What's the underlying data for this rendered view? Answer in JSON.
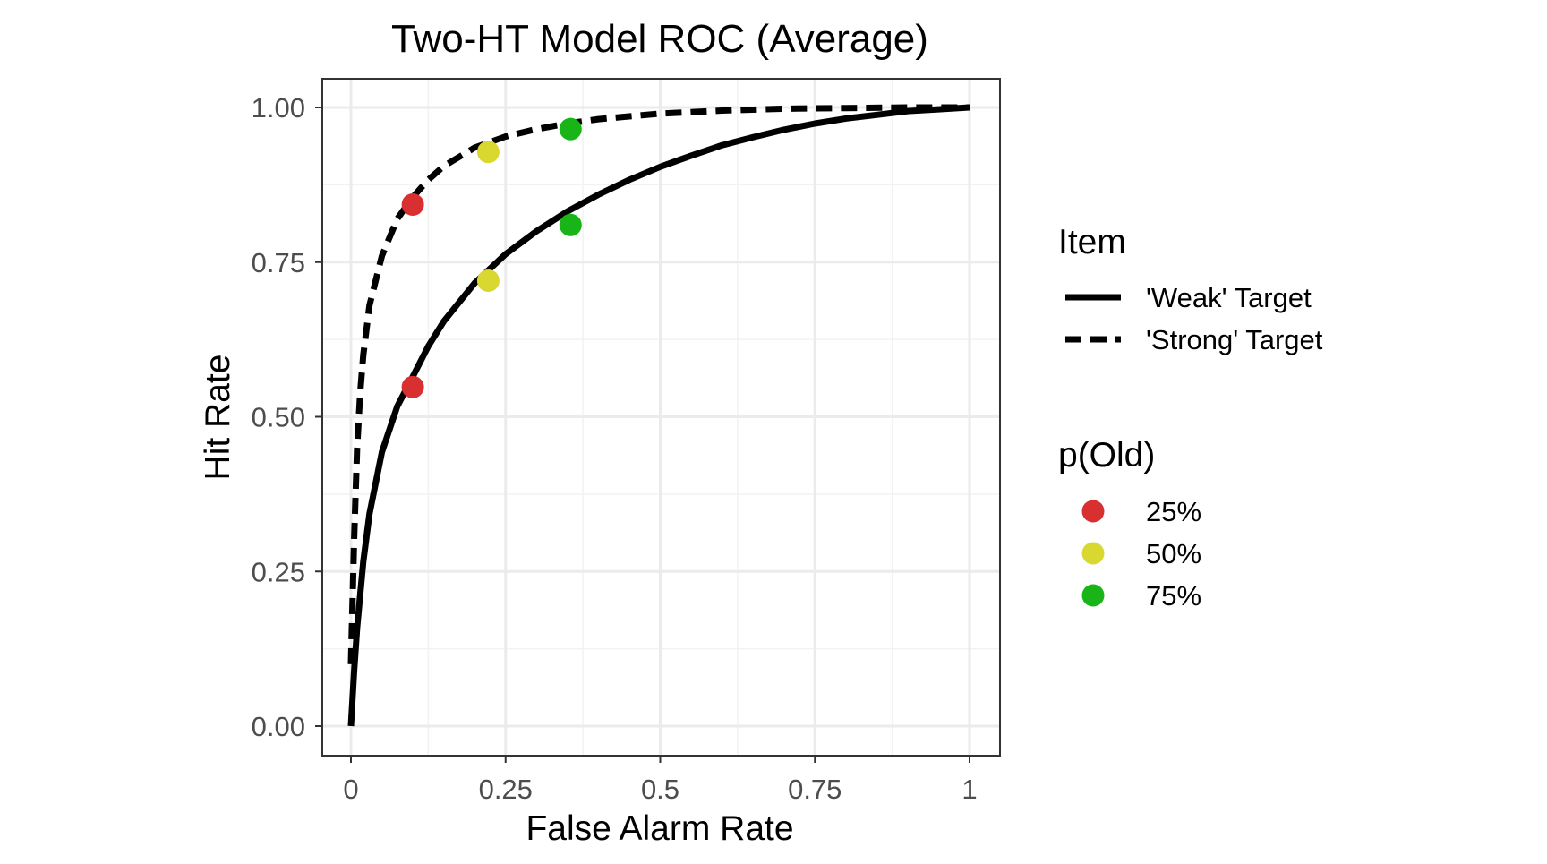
{
  "chart_data": {
    "type": "line",
    "title": "Two-HT Model ROC (Average)",
    "xlabel": "False Alarm Rate",
    "ylabel": "Hit Rate",
    "xlim": [
      0,
      1
    ],
    "ylim": [
      0,
      1
    ],
    "x_ticks": [
      {
        "value": 0,
        "label": "0"
      },
      {
        "value": 0.25,
        "label": "0.25"
      },
      {
        "value": 0.5,
        "label": "0.5"
      },
      {
        "value": 0.75,
        "label": "0.75"
      },
      {
        "value": 1,
        "label": "1"
      }
    ],
    "y_ticks": [
      {
        "value": 0,
        "label": "0.00"
      },
      {
        "value": 0.25,
        "label": "0.25"
      },
      {
        "value": 0.5,
        "label": "0.50"
      },
      {
        "value": 0.75,
        "label": "0.75"
      },
      {
        "value": 1,
        "label": "1.00"
      }
    ],
    "grid": true,
    "series": [
      {
        "name": "'Weak' Target",
        "style": "solid",
        "color": "#000000",
        "x": [
          0,
          0.005,
          0.01,
          0.02,
          0.03,
          0.05,
          0.075,
          0.1,
          0.125,
          0.15,
          0.2,
          0.25,
          0.3,
          0.35,
          0.4,
          0.45,
          0.5,
          0.55,
          0.6,
          0.65,
          0.7,
          0.75,
          0.8,
          0.85,
          0.9,
          0.95,
          1
        ],
        "y": [
          0,
          0.088,
          0.159,
          0.266,
          0.343,
          0.443,
          0.517,
          0.565,
          0.614,
          0.654,
          0.716,
          0.763,
          0.8,
          0.832,
          0.859,
          0.883,
          0.904,
          0.922,
          0.939,
          0.952,
          0.964,
          0.974,
          0.982,
          0.988,
          0.994,
          0.997,
          1
        ]
      },
      {
        "name": "'Strong' Target",
        "style": "dashed",
        "color": "#000000",
        "x": [
          0,
          0.005,
          0.01,
          0.015,
          0.02,
          0.03,
          0.05,
          0.075,
          0.1,
          0.125,
          0.15,
          0.2,
          0.25,
          0.3,
          0.35,
          0.4,
          0.5,
          0.6,
          0.7,
          0.8,
          0.9,
          1
        ],
        "y": [
          0.1,
          0.3,
          0.45,
          0.54,
          0.6,
          0.68,
          0.76,
          0.82,
          0.855,
          0.883,
          0.905,
          0.935,
          0.953,
          0.965,
          0.974,
          0.981,
          0.99,
          0.995,
          0.998,
          0.999,
          1,
          1
        ]
      }
    ],
    "points": [
      {
        "group": "25%",
        "x": 0.1,
        "y": 0.843,
        "color": "#D83030"
      },
      {
        "group": "25%",
        "x": 0.1,
        "y": 0.548,
        "color": "#D83030"
      },
      {
        "group": "50%",
        "x": 0.222,
        "y": 0.928,
        "color": "#D8D830"
      },
      {
        "group": "50%",
        "x": 0.222,
        "y": 0.72,
        "color": "#D8D830"
      },
      {
        "group": "75%",
        "x": 0.355,
        "y": 0.965,
        "color": "#18B418"
      },
      {
        "group": "75%",
        "x": 0.355,
        "y": 0.81,
        "color": "#18B418"
      }
    ],
    "legend": {
      "placement": "right",
      "line_title": "Item",
      "line_entries": [
        {
          "label": "'Weak' Target",
          "style": "solid"
        },
        {
          "label": "'Strong' Target",
          "style": "dashed"
        }
      ],
      "point_title": "p(Old)",
      "point_entries": [
        {
          "label": "25%",
          "color": "#D83030"
        },
        {
          "label": "50%",
          "color": "#D8D830"
        },
        {
          "label": "75%",
          "color": "#18B418"
        }
      ]
    }
  }
}
